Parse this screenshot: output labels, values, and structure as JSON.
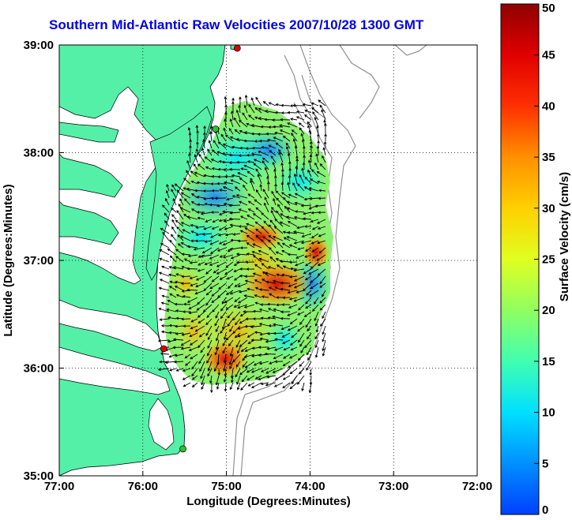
{
  "title": "Southern Mid-Atlantic Raw Velocities 2007/10/28 1300 GMT",
  "xlabel": "Longitude (Degrees:Minutes)",
  "ylabel": "Latitude (Degrees:Minutes)",
  "x_ticks": [
    "77:00",
    "76:00",
    "75:00",
    "74:00",
    "73:00",
    "72:00"
  ],
  "y_ticks": [
    "39:00",
    "38:00",
    "37:00",
    "36:00",
    "35:00"
  ],
  "colorbar": {
    "label": "Surface Velocity (cm/s)",
    "ticks": [
      "0",
      "5",
      "10",
      "15",
      "20",
      "25",
      "30",
      "35",
      "40",
      "45",
      "50"
    ],
    "range": [
      0,
      50
    ]
  },
  "colors": {
    "title": "#0000e6",
    "land": "#55f0a8",
    "water": "#ffffff",
    "bathymetry": "#909090",
    "coast": "#000000",
    "station": "#e00000",
    "station_alt": "#30c030"
  },
  "map_extent": {
    "lon": [
      -77,
      -72
    ],
    "lat": [
      35,
      39
    ]
  },
  "stations": [
    {
      "lon": -74.87,
      "lat": 38.97,
      "color": "red"
    },
    {
      "lon": -75.13,
      "lat": 38.22,
      "color": "green"
    },
    {
      "lon": -75.75,
      "lat": 36.18,
      "color": "red"
    },
    {
      "lon": -75.52,
      "lat": 35.25,
      "color": "green"
    }
  ]
}
